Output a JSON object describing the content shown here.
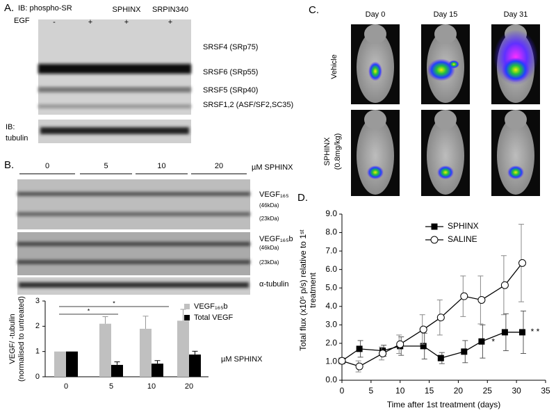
{
  "panel_a": {
    "label": "A.",
    "probe": "IB: phospho-SR",
    "treatment": "EGF",
    "lane_names": [
      "SPHINX",
      "SRPIN340"
    ],
    "egf": [
      "-",
      "+",
      "+",
      "+"
    ],
    "bands": [
      "SRSF4 (SRp75)",
      "SRSF6 (SRp55)",
      "SRSF5 (SRp40)",
      "SRSF1,2 (ASF/SF2,SC35)"
    ],
    "tubulin_probe": [
      "IB:",
      "tubulin"
    ]
  },
  "panel_b": {
    "label": "B.",
    "doses": [
      "0",
      "5",
      "10",
      "20"
    ],
    "dose_unit": "µM SPHINX",
    "blot_labels": [
      "VEGF₁₆₅",
      "(46kDa)",
      "(23kDa)",
      "VEGF₁₆₅b",
      "(46kDa)",
      "(23kDa)",
      "α-tubulin"
    ]
  },
  "panel_c": {
    "label": "C.",
    "days": [
      "Day 0",
      "Day 15",
      "Day 31"
    ],
    "rows": [
      [
        "Vehicle"
      ],
      [
        "SPHINX",
        "(0.8mg/kg)"
      ]
    ]
  },
  "panel_d": {
    "label": "D."
  },
  "chart_data": [
    {
      "type": "bar",
      "categories": [
        "0",
        "5",
        "10",
        "20"
      ],
      "y_label": [
        "VEGF/ -tubulin",
        "(normalised to untreated)"
      ],
      "x_note": "µM SPHINX",
      "annotations": [
        "*",
        "*"
      ],
      "series": [
        {
          "name": "VEGF₁₆₅b",
          "color": "#c0c0c0",
          "values": [
            1.0,
            2.1,
            1.9,
            2.22
          ],
          "errors": [
            0,
            0.28,
            0.5,
            0.45
          ]
        },
        {
          "name": "Total VEGF",
          "color": "#000000",
          "values": [
            1.0,
            0.47,
            0.52,
            0.88
          ],
          "errors": [
            0,
            0.12,
            0.12,
            0.13
          ]
        }
      ],
      "ylim": [
        0,
        3
      ],
      "yticks": [
        0,
        1,
        2,
        3
      ]
    },
    {
      "type": "line",
      "x_label": "Time after 1st treatment (days)",
      "y_label": [
        "Total flux (x10⁵ p/s) relative to 1ˢᵗ",
        "treatment"
      ],
      "x": [
        0,
        3,
        7,
        10,
        14,
        17,
        21,
        24,
        28,
        31
      ],
      "series": [
        {
          "name": "SPHINX",
          "color": "#000000",
          "marker": "square",
          "values": [
            1.05,
            1.7,
            1.6,
            1.85,
            1.85,
            1.2,
            1.55,
            2.1,
            2.6,
            2.6
          ],
          "errors": [
            0.1,
            0.45,
            0.3,
            0.5,
            0.7,
            0.3,
            0.6,
            0.9,
            1.0,
            1.15
          ]
        },
        {
          "name": "SALINE",
          "color": "#000000",
          "marker": "open-circle",
          "values": [
            1.05,
            0.75,
            1.45,
            1.95,
            2.75,
            3.4,
            4.55,
            4.35,
            5.15,
            6.35
          ],
          "errors": [
            0.1,
            0.3,
            0.35,
            0.5,
            0.8,
            0.95,
            1.1,
            1.3,
            1.6,
            2.1
          ]
        }
      ],
      "annotations": [
        "*",
        "* *"
      ],
      "xlim": [
        0,
        35
      ],
      "xticks": [
        0,
        5,
        10,
        15,
        20,
        25,
        30,
        35
      ],
      "ylim": [
        0,
        9
      ],
      "yticks": [
        {
          "value": 0,
          "label": "0.0"
        },
        {
          "value": 1,
          "label": "1.0"
        },
        {
          "value": 2,
          "label": "2.0"
        },
        {
          "value": 3,
          "label": "3.0"
        },
        {
          "value": 4,
          "label": "4.0"
        },
        {
          "value": 5,
          "label": "5.0"
        },
        {
          "value": 6,
          "label": "6.0"
        },
        {
          "value": 7,
          "label": "7.0"
        },
        {
          "value": 8,
          "label": "8.0"
        },
        {
          "value": 9,
          "label": "9.0"
        }
      ]
    }
  ]
}
